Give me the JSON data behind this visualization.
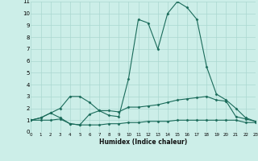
{
  "xlabel": "Humidex (Indice chaleur)",
  "bg_color": "#cceee8",
  "grid_color": "#aad8d0",
  "line_color": "#1a6b5a",
  "xlim": [
    0,
    23
  ],
  "ylim": [
    0,
    11
  ],
  "xticks": [
    0,
    1,
    2,
    3,
    4,
    5,
    6,
    7,
    8,
    9,
    10,
    11,
    12,
    13,
    14,
    15,
    16,
    17,
    18,
    19,
    20,
    21,
    22,
    23
  ],
  "yticks": [
    0,
    1,
    2,
    3,
    4,
    5,
    6,
    7,
    8,
    9,
    10,
    11
  ],
  "series": [
    {
      "x": [
        0,
        1,
        2,
        3,
        4,
        5,
        6,
        7,
        8,
        9,
        10,
        11,
        12,
        13,
        14,
        15,
        16,
        17,
        18,
        19,
        20,
        21,
        22,
        23
      ],
      "y": [
        1.0,
        1.0,
        1.0,
        1.1,
        0.7,
        0.6,
        0.6,
        0.6,
        0.7,
        0.7,
        0.8,
        0.8,
        0.9,
        0.9,
        0.9,
        1.0,
        1.0,
        1.0,
        1.0,
        1.0,
        1.0,
        1.0,
        0.8,
        0.8
      ]
    },
    {
      "x": [
        0,
        1,
        2,
        3,
        4,
        5,
        6,
        7,
        8,
        9,
        10,
        11,
        12,
        13,
        14,
        15,
        16,
        17,
        18,
        19,
        20,
        21,
        22,
        23
      ],
      "y": [
        1.0,
        1.2,
        1.6,
        2.0,
        3.0,
        3.0,
        2.5,
        1.8,
        1.8,
        1.7,
        2.1,
        2.1,
        2.2,
        2.3,
        2.5,
        2.7,
        2.8,
        2.9,
        3.0,
        2.7,
        2.6,
        1.3,
        1.1,
        0.9
      ]
    },
    {
      "x": [
        0,
        1,
        2,
        3,
        4,
        5,
        6,
        7,
        8,
        9,
        10,
        11,
        12,
        13,
        14,
        15,
        16,
        17,
        18,
        19,
        20,
        21,
        22,
        23
      ],
      "y": [
        1.0,
        1.2,
        1.6,
        1.2,
        0.7,
        0.6,
        1.5,
        1.8,
        1.4,
        1.3,
        4.5,
        9.5,
        9.2,
        7.0,
        10.0,
        11.0,
        10.5,
        9.5,
        5.5,
        3.2,
        2.7,
        2.0,
        1.2,
        0.9
      ]
    }
  ]
}
